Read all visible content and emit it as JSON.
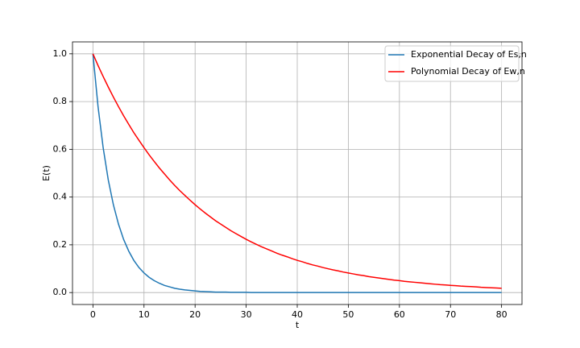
{
  "chart_data": {
    "type": "line",
    "x": [
      0,
      1,
      2,
      3,
      4,
      5,
      6,
      7,
      8,
      9,
      10,
      11,
      12,
      13,
      14,
      15,
      16,
      17,
      18,
      19,
      20,
      21,
      22,
      23,
      24,
      25,
      26,
      27,
      28,
      29,
      30,
      31,
      32,
      33,
      34,
      35,
      36,
      37,
      38,
      39,
      40,
      41,
      42,
      43,
      44,
      45,
      46,
      47,
      48,
      49,
      50,
      51,
      52,
      53,
      54,
      55,
      56,
      57,
      58,
      59,
      60,
      61,
      62,
      63,
      64,
      65,
      66,
      67,
      68,
      69,
      70,
      71,
      72,
      73,
      74,
      75,
      76,
      77,
      78,
      79,
      80
    ],
    "series": [
      {
        "name": "Exponential Decay of Es,n",
        "color": "#1f77b4",
        "values": [
          1,
          0.779,
          0.607,
          0.472,
          0.368,
          0.287,
          0.223,
          0.174,
          0.135,
          0.105,
          0.082,
          0.064,
          0.05,
          0.039,
          0.03,
          0.024,
          0.018,
          0.014,
          0.011,
          0.009,
          0.007,
          0.005,
          0.004,
          0.003,
          0.002,
          0.002,
          0.002,
          0.001,
          0.001,
          0.001,
          0.001,
          0,
          0,
          0,
          0,
          0,
          0,
          0,
          0,
          0,
          0,
          0,
          0,
          0,
          0,
          0,
          0,
          0,
          0,
          0,
          0,
          0,
          0,
          0,
          0,
          0,
          0,
          0,
          0,
          0,
          0,
          0,
          0,
          0,
          0,
          0,
          0,
          0,
          0,
          0,
          0,
          0,
          0,
          0,
          0,
          0,
          0,
          0,
          0,
          0,
          0
        ]
      },
      {
        "name": "Polynomial Decay of Ew,n",
        "color": "#ff0000",
        "values": [
          1,
          0.951,
          0.905,
          0.861,
          0.819,
          0.779,
          0.741,
          0.705,
          0.67,
          0.638,
          0.607,
          0.577,
          0.549,
          0.522,
          0.497,
          0.472,
          0.449,
          0.427,
          0.407,
          0.387,
          0.368,
          0.35,
          0.333,
          0.317,
          0.301,
          0.287,
          0.273,
          0.259,
          0.247,
          0.235,
          0.223,
          0.212,
          0.202,
          0.192,
          0.183,
          0.174,
          0.165,
          0.157,
          0.15,
          0.142,
          0.135,
          0.129,
          0.122,
          0.116,
          0.111,
          0.105,
          0.1,
          0.095,
          0.091,
          0.086,
          0.082,
          0.078,
          0.074,
          0.071,
          0.067,
          0.064,
          0.061,
          0.058,
          0.055,
          0.052,
          0.05,
          0.047,
          0.045,
          0.043,
          0.041,
          0.039,
          0.037,
          0.035,
          0.033,
          0.032,
          0.03,
          0.029,
          0.027,
          0.026,
          0.025,
          0.024,
          0.022,
          0.021,
          0.02,
          0.019,
          0.018
        ]
      }
    ],
    "x_label": "t",
    "y_label": "E(t)",
    "xlim": [
      -4,
      84
    ],
    "xticks": [
      0,
      10,
      20,
      30,
      40,
      50,
      60,
      70,
      80
    ],
    "ylim": [
      -0.05,
      1.05
    ],
    "yticks": [
      {
        "value": 0,
        "label": "0.0"
      },
      0.2,
      0.4,
      0.6,
      0.8,
      {
        "value": 1,
        "label": "1.0"
      }
    ],
    "grid": true,
    "legend": "upper right"
  }
}
